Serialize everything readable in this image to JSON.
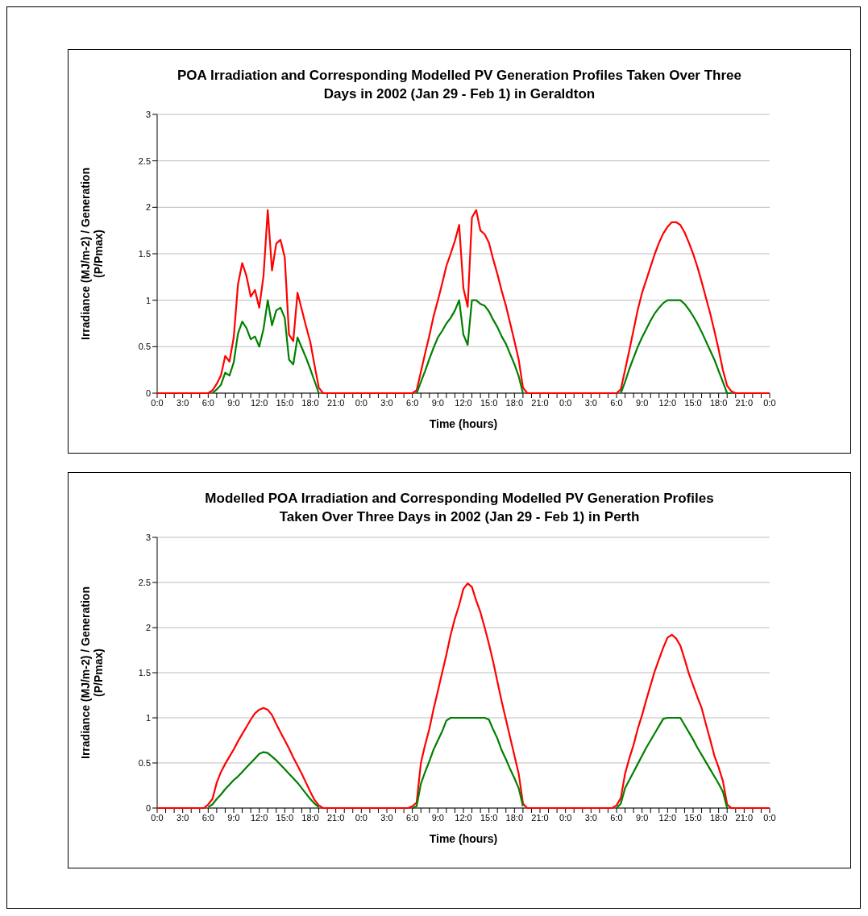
{
  "chart_data": [
    {
      "type": "line",
      "title": "POA Irradiation and Corresponding Modelled PV Generation Profiles Taken Over Three Days in 2002 (Jan 29 - Feb 1) in Geraldton",
      "xlabel": "Time (hours)",
      "ylabel": "Irradiance (MJ/m-2) / Generation (P/Pmax)",
      "ylim": [
        0,
        3
      ],
      "yticks": [
        0,
        0.5,
        1,
        1.5,
        2,
        2.5,
        3
      ],
      "grid": "y",
      "categories": [
        "0:0",
        null,
        null,
        null,
        null,
        null,
        "3:0",
        null,
        null,
        null,
        null,
        null,
        "6:0",
        null,
        null,
        null,
        null,
        null,
        "9:0",
        null,
        null,
        null,
        null,
        null,
        "12:0",
        null,
        null,
        null,
        null,
        null,
        "15:0",
        null,
        null,
        null,
        null,
        null,
        "18:0",
        null,
        null,
        null,
        null,
        null,
        "21:0",
        null,
        null,
        null,
        null,
        null,
        "0:0",
        null,
        null,
        null,
        null,
        null,
        "3:0",
        null,
        null,
        null,
        null,
        null,
        "6:0",
        null,
        null,
        null,
        null,
        null,
        "9:0",
        null,
        null,
        null,
        null,
        null,
        "12:0",
        null,
        null,
        null,
        null,
        null,
        "15:0",
        null,
        null,
        null,
        null,
        null,
        "18:0",
        null,
        null,
        null,
        null,
        null,
        "21:0",
        null,
        null,
        null,
        null,
        null,
        "0:0",
        null,
        null,
        null,
        null,
        null,
        "3:0",
        null,
        null,
        null,
        null,
        null,
        "6:0",
        null,
        null,
        null,
        null,
        null,
        "9:0",
        null,
        null,
        null,
        null,
        null,
        "12:0",
        null,
        null,
        null,
        null,
        null,
        "15:0",
        null,
        null,
        null,
        null,
        null,
        "18:0",
        null,
        null,
        null,
        null,
        null,
        "21:0",
        null,
        null,
        null,
        null,
        null,
        "0:0"
      ],
      "series": [
        {
          "color": "#ff0000",
          "values": [
            0,
            0,
            0,
            0,
            0,
            0,
            0,
            0,
            0,
            0,
            0,
            0,
            0,
            0.03,
            0.1,
            0.19,
            0.4,
            0.34,
            0.6,
            1.17,
            1.4,
            1.26,
            1.04,
            1.11,
            0.92,
            1.26,
            1.97,
            1.32,
            1.61,
            1.65,
            1.46,
            0.63,
            0.56,
            1.08,
            0.9,
            0.72,
            0.55,
            0.3,
            0.06,
            0,
            0,
            0,
            0,
            0,
            0,
            0,
            0,
            0,
            0,
            0,
            0,
            0,
            0,
            0,
            0,
            0,
            0,
            0,
            0,
            0,
            0,
            0.03,
            0.23,
            0.43,
            0.62,
            0.83,
            1.0,
            1.18,
            1.37,
            1.5,
            1.64,
            1.81,
            1.13,
            0.93,
            1.89,
            1.97,
            1.75,
            1.71,
            1.62,
            1.44,
            1.28,
            1.1,
            0.94,
            0.75,
            0.56,
            0.36,
            0.06,
            0,
            0,
            0,
            0,
            0,
            0,
            0,
            0,
            0,
            0,
            0,
            0,
            0,
            0,
            0,
            0,
            0,
            0,
            0,
            0,
            0,
            0,
            0.04,
            0.25,
            0.46,
            0.68,
            0.9,
            1.08,
            1.22,
            1.36,
            1.5,
            1.62,
            1.72,
            1.79,
            1.84,
            1.84,
            1.81,
            1.73,
            1.62,
            1.5,
            1.36,
            1.2,
            1.03,
            0.86,
            0.67,
            0.47,
            0.25,
            0.08,
            0.02,
            0,
            0,
            0,
            0,
            0,
            0,
            0,
            0,
            0
          ]
        },
        {
          "color": "#008000",
          "values": [
            null,
            null,
            null,
            null,
            null,
            null,
            null,
            null,
            null,
            null,
            null,
            null,
            null,
            0,
            0.04,
            0.09,
            0.22,
            0.19,
            0.33,
            0.64,
            0.77,
            0.7,
            0.58,
            0.61,
            0.5,
            0.69,
            1.0,
            0.73,
            0.89,
            0.92,
            0.81,
            0.36,
            0.31,
            0.6,
            0.49,
            0.38,
            0.26,
            0.13,
            0,
            null,
            null,
            null,
            null,
            null,
            null,
            null,
            null,
            null,
            null,
            null,
            null,
            null,
            null,
            null,
            null,
            null,
            null,
            null,
            null,
            null,
            null,
            0,
            0.12,
            0.24,
            0.37,
            0.49,
            0.6,
            0.67,
            0.75,
            0.81,
            0.89,
            1.0,
            0.63,
            0.52,
            1.0,
            1.0,
            0.96,
            0.94,
            0.88,
            0.79,
            0.71,
            0.61,
            0.53,
            0.42,
            0.31,
            0.18,
            0,
            null,
            null,
            null,
            null,
            null,
            null,
            null,
            null,
            null,
            null,
            null,
            null,
            null,
            null,
            null,
            null,
            null,
            null,
            null,
            null,
            null,
            null,
            0,
            0.12,
            0.26,
            0.38,
            0.5,
            0.6,
            0.69,
            0.78,
            0.86,
            0.92,
            0.97,
            1.0,
            1.0,
            1.0,
            1.0,
            0.96,
            0.9,
            0.83,
            0.75,
            0.66,
            0.56,
            0.46,
            0.36,
            0.24,
            0.12,
            0,
            0,
            null,
            null,
            null,
            null,
            null,
            null,
            null,
            null,
            null
          ]
        }
      ]
    },
    {
      "type": "line",
      "title": "Modelled POA Irradiation and Corresponding Modelled PV Generation Profiles Taken Over Three Days in 2002 (Jan 29 - Feb 1) in Perth",
      "xlabel": "Time (hours)",
      "ylabel": "Irradiance (MJ/m-2) / Generation (P/Pmax)",
      "ylim": [
        0,
        3
      ],
      "yticks": [
        0,
        0.5,
        1,
        1.5,
        2,
        2.5,
        3
      ],
      "grid": "y",
      "categories": [
        "0:0",
        null,
        null,
        null,
        null,
        null,
        "3:0",
        null,
        null,
        null,
        null,
        null,
        "6:0",
        null,
        null,
        null,
        null,
        null,
        "9:0",
        null,
        null,
        null,
        null,
        null,
        "12:0",
        null,
        null,
        null,
        null,
        null,
        "15:0",
        null,
        null,
        null,
        null,
        null,
        "18:0",
        null,
        null,
        null,
        null,
        null,
        "21:0",
        null,
        null,
        null,
        null,
        null,
        "0:0",
        null,
        null,
        null,
        null,
        null,
        "3:0",
        null,
        null,
        null,
        null,
        null,
        "6:0",
        null,
        null,
        null,
        null,
        null,
        "9:0",
        null,
        null,
        null,
        null,
        null,
        "12:0",
        null,
        null,
        null,
        null,
        null,
        "15:0",
        null,
        null,
        null,
        null,
        null,
        "18:0",
        null,
        null,
        null,
        null,
        null,
        "21:0",
        null,
        null,
        null,
        null,
        null,
        "0:0",
        null,
        null,
        null,
        null,
        null,
        "3:0",
        null,
        null,
        null,
        null,
        null,
        "6:0",
        null,
        null,
        null,
        null,
        null,
        "9:0",
        null,
        null,
        null,
        null,
        null,
        "12:0",
        null,
        null,
        null,
        null,
        null,
        "15:0",
        null,
        null,
        null,
        null,
        null,
        "18:0",
        null,
        null,
        null,
        null,
        null,
        "21:0",
        null,
        null,
        null,
        null,
        null,
        "0:0"
      ],
      "series": [
        {
          "color": "#ff0000",
          "values": [
            0,
            0,
            0,
            0,
            0,
            0,
            0,
            0,
            0,
            0,
            0,
            0,
            0.04,
            0.1,
            0.28,
            0.4,
            0.49,
            0.57,
            0.65,
            0.74,
            0.82,
            0.9,
            0.98,
            1.05,
            1.09,
            1.11,
            1.09,
            1.03,
            0.93,
            0.84,
            0.75,
            0.66,
            0.56,
            0.47,
            0.38,
            0.28,
            0.18,
            0.09,
            0.03,
            0,
            0,
            0,
            0,
            0,
            0,
            0,
            0,
            0,
            0,
            0,
            0,
            0,
            0,
            0,
            0,
            0,
            0,
            0,
            0,
            0,
            0.02,
            0.06,
            0.5,
            0.7,
            0.88,
            1.1,
            1.3,
            1.5,
            1.7,
            1.92,
            2.1,
            2.25,
            2.43,
            2.49,
            2.45,
            2.3,
            2.17,
            2.0,
            1.82,
            1.62,
            1.4,
            1.18,
            0.98,
            0.78,
            0.58,
            0.38,
            0.05,
            0,
            0,
            0,
            0,
            0,
            0,
            0,
            0,
            0,
            0,
            0,
            0,
            0,
            0,
            0,
            0,
            0,
            0,
            0,
            0,
            0,
            0.03,
            0.11,
            0.38,
            0.55,
            0.7,
            0.88,
            1.03,
            1.2,
            1.36,
            1.52,
            1.65,
            1.78,
            1.89,
            1.92,
            1.88,
            1.8,
            1.65,
            1.49,
            1.36,
            1.23,
            1.11,
            0.93,
            0.76,
            0.58,
            0.45,
            0.3,
            0.04,
            0,
            0,
            0,
            0,
            0,
            0,
            0,
            0,
            0,
            0
          ]
        },
        {
          "color": "#008000",
          "values": [
            null,
            null,
            null,
            null,
            null,
            null,
            null,
            null,
            null,
            null,
            null,
            null,
            0.01,
            0.04,
            0.1,
            0.15,
            0.21,
            0.26,
            0.31,
            0.35,
            0.4,
            0.45,
            0.5,
            0.55,
            0.6,
            0.62,
            0.61,
            0.57,
            0.53,
            0.48,
            0.43,
            0.38,
            0.33,
            0.28,
            0.22,
            0.16,
            0.1,
            0.05,
            0.01,
            null,
            null,
            null,
            null,
            null,
            null,
            null,
            null,
            null,
            null,
            null,
            null,
            null,
            null,
            null,
            null,
            null,
            null,
            null,
            null,
            null,
            0,
            0.02,
            0.27,
            0.4,
            0.52,
            0.65,
            0.75,
            0.85,
            0.97,
            1.0,
            1.0,
            1.0,
            1.0,
            1.0,
            1.0,
            1.0,
            1.0,
            1.0,
            0.98,
            0.87,
            0.77,
            0.64,
            0.54,
            0.43,
            0.33,
            0.22,
            0.02,
            null,
            null,
            null,
            null,
            null,
            null,
            null,
            null,
            null,
            null,
            null,
            null,
            null,
            null,
            null,
            null,
            null,
            null,
            null,
            null,
            null,
            0,
            0.05,
            0.22,
            0.31,
            0.4,
            0.49,
            0.58,
            0.67,
            0.75,
            0.83,
            0.91,
            0.99,
            1.0,
            1.0,
            1.0,
            1.0,
            0.92,
            0.84,
            0.76,
            0.67,
            0.59,
            0.51,
            0.43,
            0.35,
            0.27,
            0.18,
            0,
            null,
            null,
            null,
            null,
            null,
            null,
            null,
            null,
            null,
            null
          ]
        }
      ]
    }
  ]
}
